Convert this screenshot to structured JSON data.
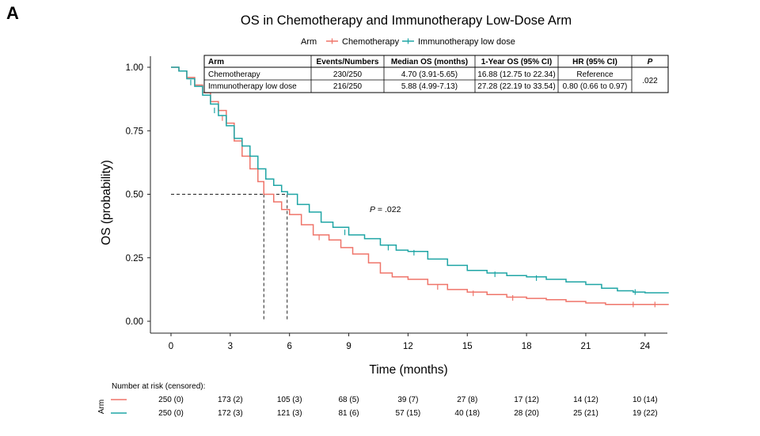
{
  "panel_label": "A",
  "colors": {
    "chemo": "#EF7469",
    "immuno": "#1FA5A5"
  },
  "chart_data": {
    "type": "line",
    "subtype": "kaplan-meier",
    "title": "OS in Chemotherapy and Immunotherapy Low-Dose Arm",
    "xlabel": "Time (months)",
    "ylabel": "OS (probability)",
    "xlim": [
      -1,
      25.2
    ],
    "ylim": [
      0,
      1
    ],
    "x_ticks": [
      0,
      3,
      6,
      9,
      12,
      15,
      18,
      21,
      24
    ],
    "y_ticks": [
      0,
      0.25,
      0.5,
      0.75,
      1.0
    ],
    "y_tick_labels": [
      "0.00",
      "0.25",
      "0.50",
      "0.75",
      "1.00"
    ],
    "legend": {
      "title": "Arm",
      "entries": [
        "Chemotherapy",
        "Immunotherapy low dose"
      ],
      "position": "top"
    },
    "series": [
      {
        "name": "Chemotherapy",
        "color": "#EF7469",
        "points": [
          [
            0,
            1
          ],
          [
            0.4,
            0.985
          ],
          [
            0.8,
            0.96
          ],
          [
            1.2,
            0.93
          ],
          [
            1.6,
            0.9
          ],
          [
            2.0,
            0.865
          ],
          [
            2.4,
            0.83
          ],
          [
            2.8,
            0.78
          ],
          [
            3.2,
            0.71
          ],
          [
            3.6,
            0.65
          ],
          [
            4.0,
            0.6
          ],
          [
            4.4,
            0.55
          ],
          [
            4.7,
            0.5
          ],
          [
            5.2,
            0.47
          ],
          [
            5.6,
            0.44
          ],
          [
            6.0,
            0.42
          ],
          [
            6.6,
            0.38
          ],
          [
            7.2,
            0.34
          ],
          [
            8.0,
            0.32
          ],
          [
            8.6,
            0.29
          ],
          [
            9.2,
            0.265
          ],
          [
            10.0,
            0.23
          ],
          [
            10.6,
            0.19
          ],
          [
            11.2,
            0.175
          ],
          [
            12.0,
            0.165
          ],
          [
            13.0,
            0.145
          ],
          [
            14.0,
            0.125
          ],
          [
            15.0,
            0.115
          ],
          [
            16.0,
            0.105
          ],
          [
            17.0,
            0.095
          ],
          [
            18.0,
            0.09
          ],
          [
            19.0,
            0.085
          ],
          [
            20.0,
            0.078
          ],
          [
            21.0,
            0.072
          ],
          [
            22.0,
            0.066
          ],
          [
            23.0,
            0.066
          ],
          [
            24.0,
            0.066
          ],
          [
            25.2,
            0.066
          ]
        ],
        "censored": [
          [
            2.6,
            0.8
          ],
          [
            7.5,
            0.33
          ],
          [
            13.5,
            0.135
          ],
          [
            15.3,
            0.11
          ],
          [
            17.3,
            0.092
          ],
          [
            23.4,
            0.066
          ],
          [
            24.5,
            0.066
          ]
        ]
      },
      {
        "name": "Immunotherapy low dose",
        "color": "#1FA5A5",
        "points": [
          [
            0,
            1
          ],
          [
            0.4,
            0.985
          ],
          [
            0.8,
            0.955
          ],
          [
            1.2,
            0.925
          ],
          [
            1.6,
            0.89
          ],
          [
            2.0,
            0.855
          ],
          [
            2.4,
            0.81
          ],
          [
            2.8,
            0.77
          ],
          [
            3.2,
            0.72
          ],
          [
            3.6,
            0.69
          ],
          [
            4.0,
            0.65
          ],
          [
            4.4,
            0.6
          ],
          [
            4.8,
            0.56
          ],
          [
            5.2,
            0.535
          ],
          [
            5.6,
            0.51
          ],
          [
            5.9,
            0.5
          ],
          [
            6.4,
            0.46
          ],
          [
            7.0,
            0.43
          ],
          [
            7.6,
            0.39
          ],
          [
            8.2,
            0.37
          ],
          [
            9.0,
            0.34
          ],
          [
            9.8,
            0.325
          ],
          [
            10.6,
            0.3
          ],
          [
            11.4,
            0.28
          ],
          [
            12.0,
            0.275
          ],
          [
            13.0,
            0.245
          ],
          [
            14.0,
            0.22
          ],
          [
            15.0,
            0.2
          ],
          [
            16.0,
            0.19
          ],
          [
            17.0,
            0.18
          ],
          [
            18.0,
            0.175
          ],
          [
            19.0,
            0.165
          ],
          [
            20.0,
            0.155
          ],
          [
            21.0,
            0.145
          ],
          [
            21.8,
            0.13
          ],
          [
            22.6,
            0.12
          ],
          [
            23.4,
            0.115
          ],
          [
            24.0,
            0.112
          ],
          [
            25.2,
            0.112
          ]
        ],
        "censored": [
          [
            1.0,
            0.94
          ],
          [
            2.2,
            0.83
          ],
          [
            8.8,
            0.35
          ],
          [
            11.0,
            0.29
          ],
          [
            12.3,
            0.27
          ],
          [
            16.4,
            0.185
          ],
          [
            18.5,
            0.17
          ],
          [
            23.5,
            0.115
          ]
        ]
      }
    ],
    "median_lines": [
      {
        "series": "Chemotherapy",
        "x": 4.7,
        "y": 0.5
      },
      {
        "series": "Immunotherapy low dose",
        "x": 5.88,
        "y": 0.5
      }
    ],
    "annotation": {
      "label_prefix": "P",
      "label_rest": " = .022",
      "x": 10.2,
      "y": 0.445
    },
    "summary_table": {
      "headers": [
        "Arm",
        "Events/Numbers",
        "Median OS (months)",
        "1-Year OS (95% CI)",
        "HR (95% CI)",
        "P"
      ],
      "rows": [
        [
          "Chemotherapy",
          "230/250",
          "4.70 (3.91-5.65)",
          "16.88 (12.75 to 22.34)",
          "Reference"
        ],
        [
          "Immunotherapy low dose",
          "216/250",
          "5.88 (4.99-7.13)",
          "27.28 (22.19 to 33.54)",
          "0.80 (0.66 to 0.97)"
        ]
      ],
      "p_value": ".022"
    },
    "risk_table": {
      "title": "Number at risk (censored):",
      "side_label": "Arm",
      "times": [
        0,
        3,
        6,
        9,
        12,
        15,
        18,
        21,
        24
      ],
      "rows": [
        {
          "series": "Chemotherapy",
          "values": [
            "250 (0)",
            "173 (2)",
            "105 (3)",
            "68 (5)",
            "39 (7)",
            "27 (8)",
            "17 (12)",
            "14 (12)",
            "10 (14)"
          ]
        },
        {
          "series": "Immunotherapy low dose",
          "values": [
            "250 (0)",
            "172 (3)",
            "121 (3)",
            "81 (6)",
            "57 (15)",
            "40 (18)",
            "28 (20)",
            "25 (21)",
            "19 (22)"
          ]
        }
      ]
    }
  }
}
